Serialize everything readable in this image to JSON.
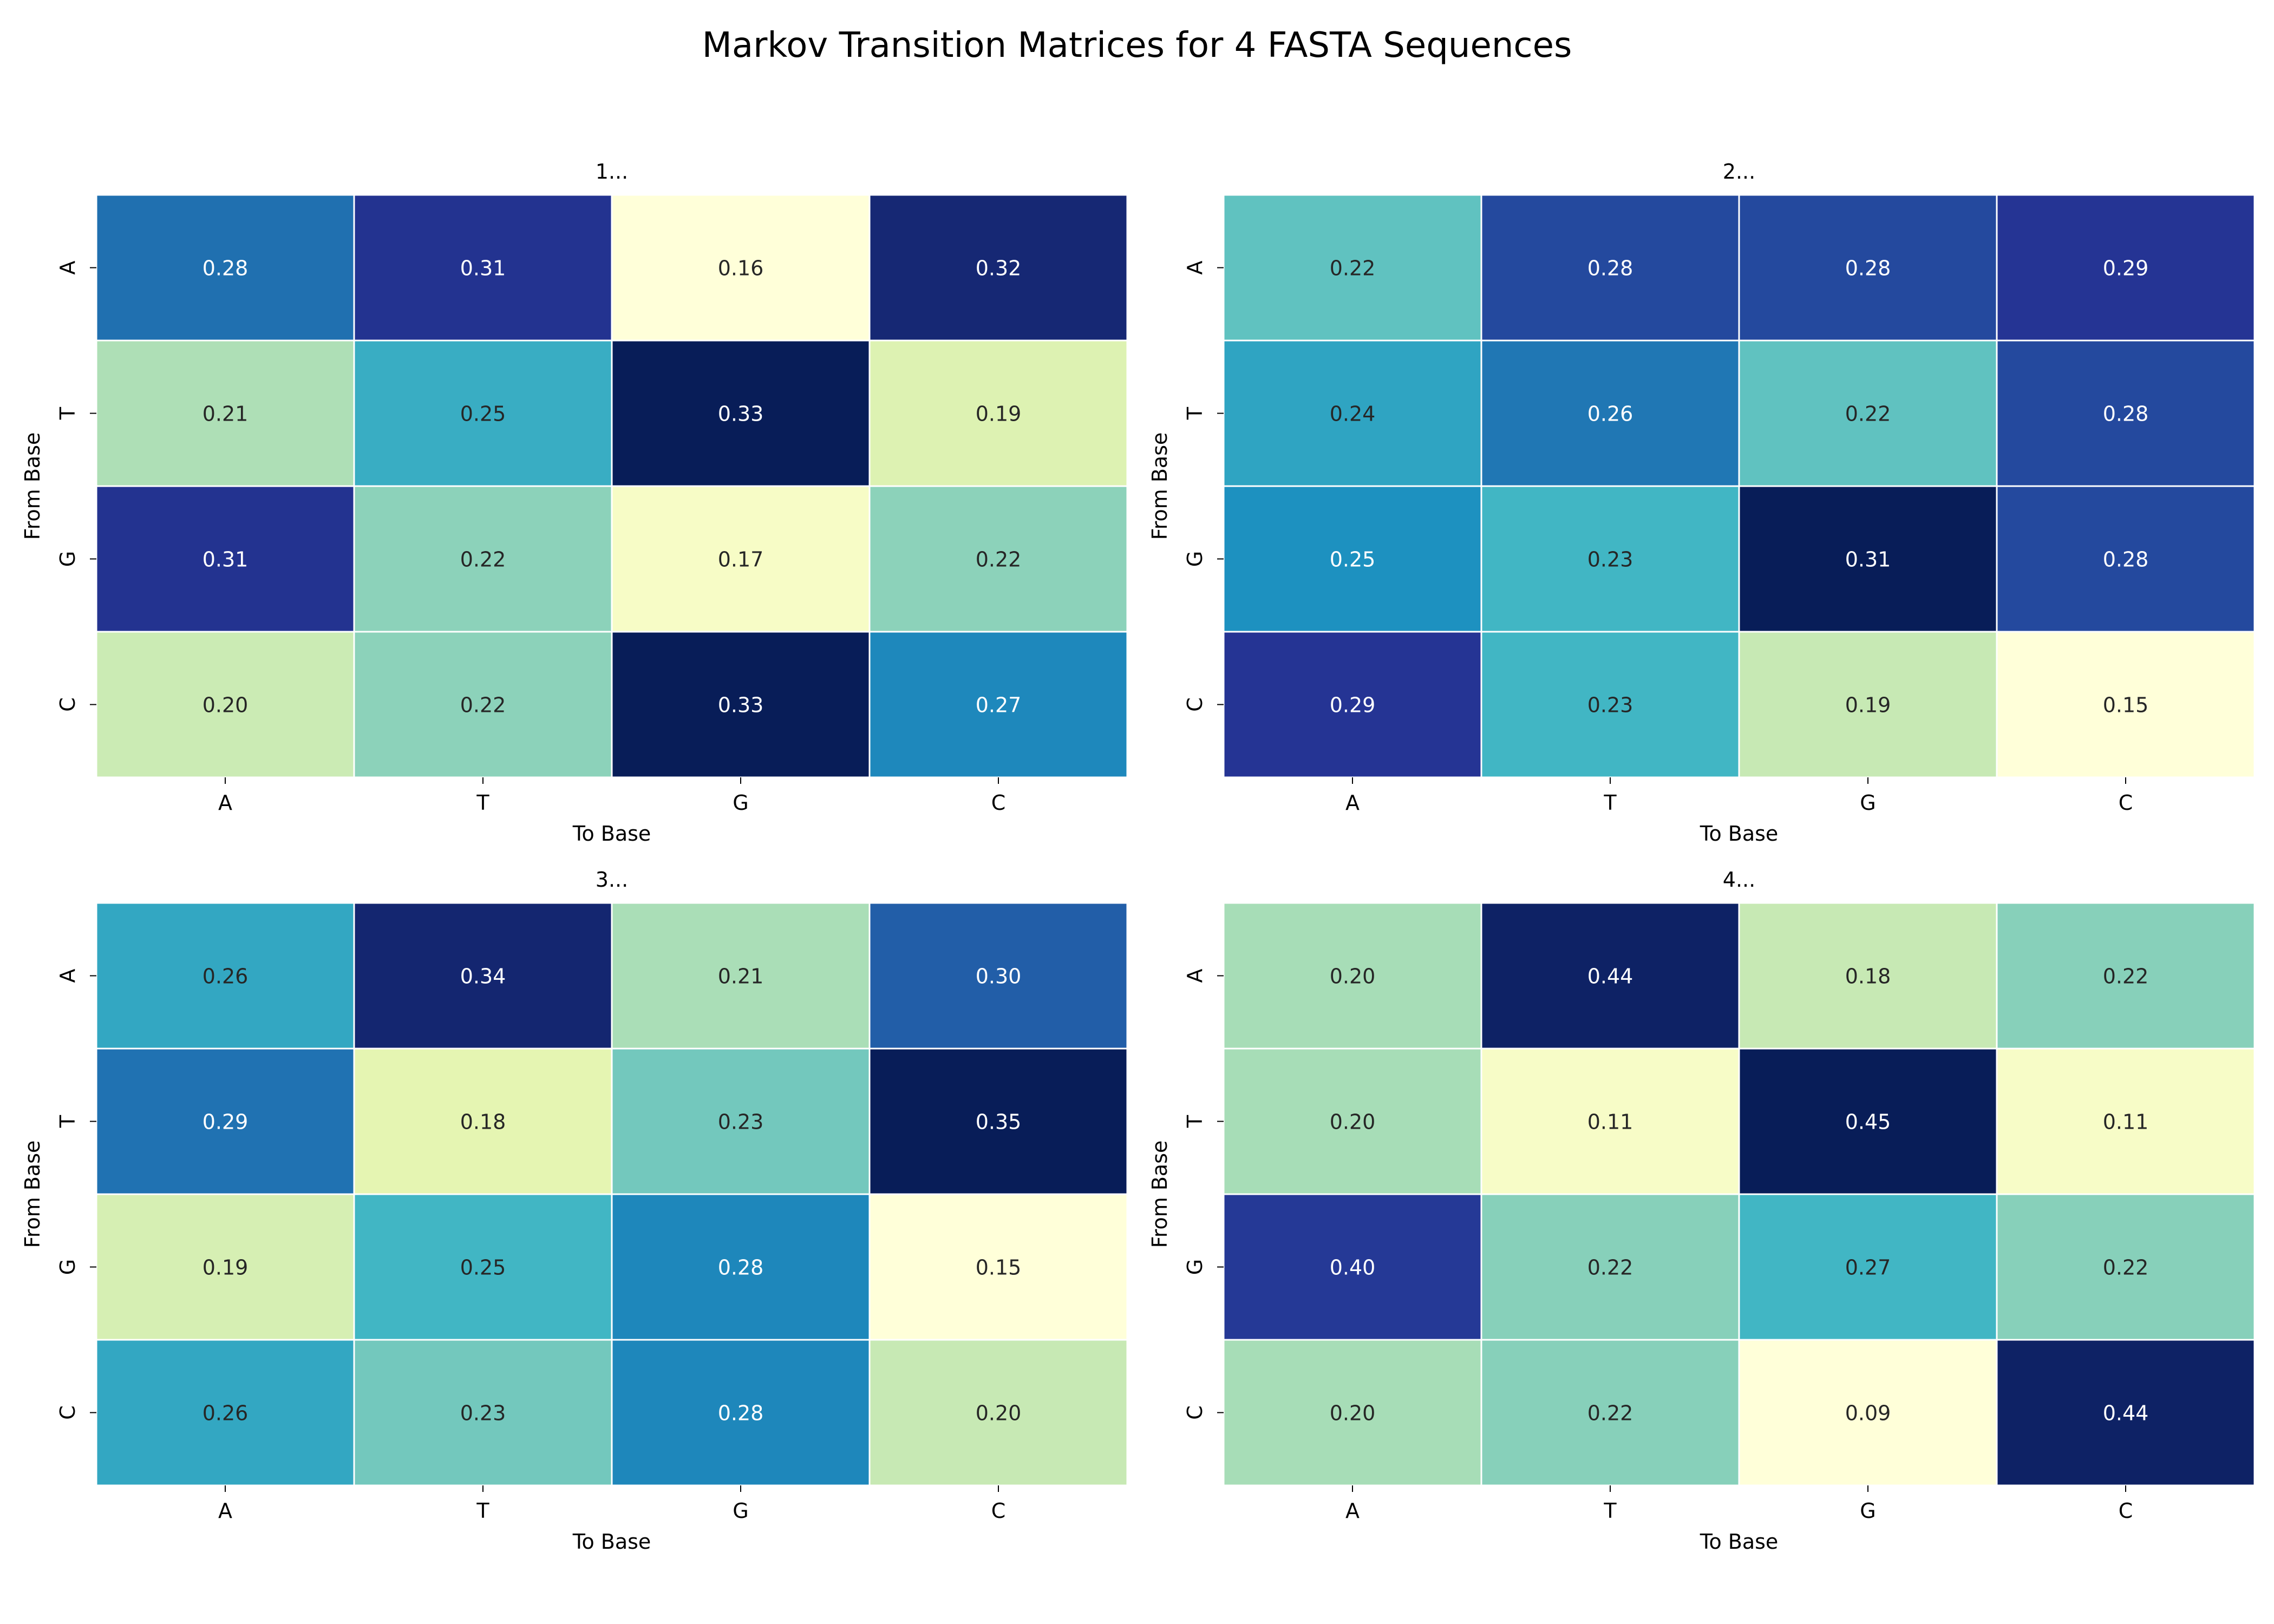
{
  "figure": {
    "title": "Markov Transition Matrices for 4 FASTA Sequences"
  },
  "colors": {
    "colormap": "YlGnBu",
    "stops": [
      "#ffffd9",
      "#edf8b1",
      "#c7e9b4",
      "#7fcdbb",
      "#41b6c4",
      "#1d91c0",
      "#225ea8",
      "#253494",
      "#081d58"
    ],
    "cell_border": "#ffffff",
    "dark_text": "#262626",
    "light_text": "#ffffff"
  },
  "chart_data": [
    {
      "type": "heatmap",
      "title": "1...",
      "xlabel": "To Base",
      "ylabel": "From Base",
      "x_categories": [
        "A",
        "T",
        "G",
        "C"
      ],
      "y_categories": [
        "A",
        "T",
        "G",
        "C"
      ],
      "values": [
        [
          0.28,
          0.31,
          0.16,
          0.32
        ],
        [
          0.21,
          0.25,
          0.33,
          0.19
        ],
        [
          0.31,
          0.22,
          0.17,
          0.22
        ],
        [
          0.2,
          0.22,
          0.33,
          0.27
        ]
      ],
      "value_format": "0.00",
      "colorbar": false
    },
    {
      "type": "heatmap",
      "title": "2...",
      "xlabel": "To Base",
      "ylabel": "From Base",
      "x_categories": [
        "A",
        "T",
        "G",
        "C"
      ],
      "y_categories": [
        "A",
        "T",
        "G",
        "C"
      ],
      "values": [
        [
          0.22,
          0.28,
          0.28,
          0.29
        ],
        [
          0.24,
          0.26,
          0.22,
          0.28
        ],
        [
          0.25,
          0.23,
          0.31,
          0.28
        ],
        [
          0.29,
          0.23,
          0.19,
          0.15
        ]
      ],
      "value_format": "0.00",
      "colorbar": false
    },
    {
      "type": "heatmap",
      "title": "3...",
      "xlabel": "To Base",
      "ylabel": "From Base",
      "x_categories": [
        "A",
        "T",
        "G",
        "C"
      ],
      "y_categories": [
        "A",
        "T",
        "G",
        "C"
      ],
      "values": [
        [
          0.26,
          0.34,
          0.21,
          0.3
        ],
        [
          0.29,
          0.18,
          0.23,
          0.35
        ],
        [
          0.19,
          0.25,
          0.28,
          0.15
        ],
        [
          0.26,
          0.23,
          0.28,
          0.2
        ]
      ],
      "value_format": "0.00",
      "colorbar": false
    },
    {
      "type": "heatmap",
      "title": "4...",
      "xlabel": "To Base",
      "ylabel": "From Base",
      "x_categories": [
        "A",
        "T",
        "G",
        "C"
      ],
      "y_categories": [
        "A",
        "T",
        "G",
        "C"
      ],
      "values": [
        [
          0.2,
          0.44,
          0.18,
          0.22
        ],
        [
          0.2,
          0.11,
          0.45,
          0.11
        ],
        [
          0.4,
          0.22,
          0.27,
          0.22
        ],
        [
          0.2,
          0.22,
          0.09,
          0.44
        ]
      ],
      "value_format": "0.00",
      "colorbar": false
    }
  ]
}
